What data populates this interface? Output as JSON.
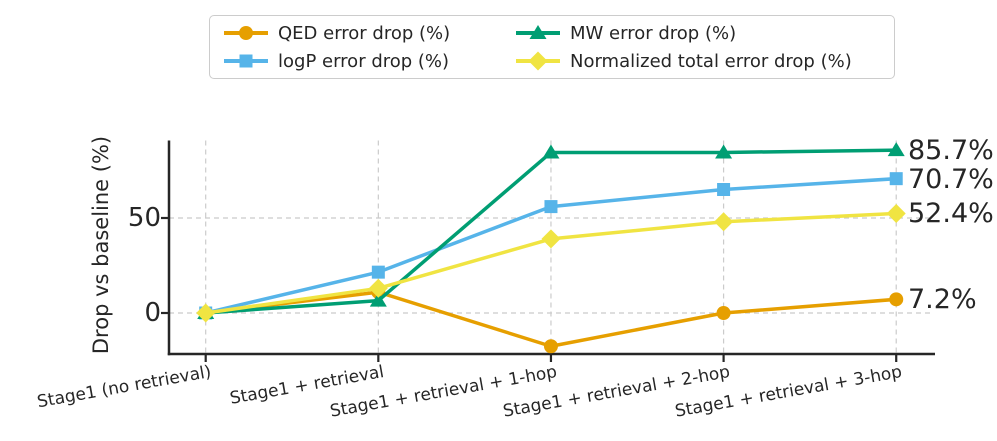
{
  "figure": {
    "background": "#ffffff",
    "text_color": "#262626",
    "grid_color": "#cbcbcb",
    "spine_color": "#262626",
    "legend_border_color": "#cccccc"
  },
  "chart_data": {
    "type": "line",
    "title": "",
    "xlabel": "",
    "ylabel": "Drop vs baseline (%)",
    "categories": [
      "Stage1 (no retrieval)",
      "Stage1 + retrieval",
      "Stage1 + retrieval + 1-hop",
      "Stage1 + retrieval + 2-hop",
      "Stage1 + retrieval + 3-hop"
    ],
    "series": [
      {
        "name": "QED error drop (%)",
        "color": "#E69F00",
        "marker": "circle",
        "values": [
          0,
          11,
          -17.5,
          0,
          7.2
        ],
        "end_label": "7.2%"
      },
      {
        "name": "logP error drop (%)",
        "color": "#56B4E9",
        "marker": "square",
        "values": [
          0,
          21.5,
          56,
          65,
          70.7
        ],
        "end_label": "70.7%"
      },
      {
        "name": "MW error drop (%)",
        "color": "#009E73",
        "marker": "triangle",
        "values": [
          0,
          6.5,
          84.5,
          84.5,
          85.7
        ],
        "end_label": "85.7%"
      },
      {
        "name": "Normalized total error drop (%)",
        "color": "#F0E442",
        "marker": "diamond",
        "values": [
          0,
          13,
          39,
          48,
          52.4
        ],
        "end_label": "52.4%"
      }
    ],
    "yticks": [
      0,
      50
    ],
    "ylim": [
      -21.6,
      91
    ],
    "grid": "dashed",
    "legend_position": "top-center",
    "legend_columns": 2
  }
}
